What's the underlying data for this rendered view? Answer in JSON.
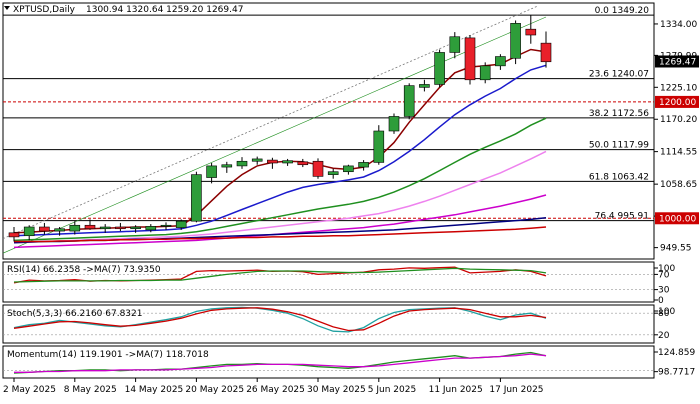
{
  "chart_data": [
    {
      "type": "candlestick",
      "title": "XPTUSD,Daily",
      "ohlc_text": "1300.94 1320.64 1259.20 1269.47",
      "last_price": "1269.47",
      "ylim": [
        930,
        1370
      ],
      "x_ticks": [
        {
          "i": 0,
          "label": "2 May 2025"
        },
        {
          "i": 4,
          "label": "8 May 2025"
        },
        {
          "i": 8,
          "label": "14 May 2025"
        },
        {
          "i": 12,
          "label": "20 May 2025"
        },
        {
          "i": 16,
          "label": "26 May 2025"
        },
        {
          "i": 20,
          "label": "30 May 2025"
        },
        {
          "i": 24,
          "label": "5 Jun 2025"
        },
        {
          "i": 28,
          "label": "11 Jun 2025"
        },
        {
          "i": 32,
          "label": "17 Jun 2025"
        }
      ],
      "y_ticks": [
        "1334.00",
        "1279.99",
        "1225.10",
        "1170.20",
        "1114.55",
        "1058.65",
        "1003.75",
        "949.55"
      ],
      "fib_levels": [
        {
          "label": "0.0 1349.20",
          "value": 1349.2
        },
        {
          "label": "23.6 1240.07",
          "value": 1240.07
        },
        {
          "label": "38.2 1172.56",
          "value": 1172.56
        },
        {
          "label": "50.0 1117.99",
          "value": 1117.99
        },
        {
          "label": "61.8 1063.42",
          "value": 1063.42
        },
        {
          "label": "76.4 995.91",
          "value": 995.91
        }
      ],
      "red_levels": [
        {
          "label": "1200.00",
          "value": 1200
        },
        {
          "label": "1000.00",
          "value": 1000
        }
      ],
      "candles": [
        {
          "o": 975,
          "h": 985,
          "l": 960,
          "c": 968
        },
        {
          "o": 970,
          "h": 988,
          "l": 962,
          "c": 985
        },
        {
          "o": 985,
          "h": 992,
          "l": 972,
          "c": 978
        },
        {
          "o": 978,
          "h": 985,
          "l": 970,
          "c": 982
        },
        {
          "o": 978,
          "h": 995,
          "l": 972,
          "c": 988
        },
        {
          "o": 988,
          "h": 998,
          "l": 980,
          "c": 982
        },
        {
          "o": 982,
          "h": 990,
          "l": 975,
          "c": 985
        },
        {
          "o": 985,
          "h": 992,
          "l": 978,
          "c": 982
        },
        {
          "o": 982,
          "h": 988,
          "l": 975,
          "c": 985
        },
        {
          "o": 980,
          "h": 990,
          "l": 976,
          "c": 986
        },
        {
          "o": 986,
          "h": 993,
          "l": 980,
          "c": 988
        },
        {
          "o": 984,
          "h": 998,
          "l": 980,
          "c": 995
        },
        {
          "o": 995,
          "h": 1080,
          "l": 993,
          "c": 1075
        },
        {
          "o": 1070,
          "h": 1095,
          "l": 1060,
          "c": 1090
        },
        {
          "o": 1088,
          "h": 1097,
          "l": 1078,
          "c": 1092
        },
        {
          "o": 1090,
          "h": 1105,
          "l": 1085,
          "c": 1098
        },
        {
          "o": 1098,
          "h": 1106,
          "l": 1092,
          "c": 1102
        },
        {
          "o": 1100,
          "h": 1104,
          "l": 1085,
          "c": 1095
        },
        {
          "o": 1095,
          "h": 1102,
          "l": 1090,
          "c": 1099
        },
        {
          "o": 1097,
          "h": 1102,
          "l": 1088,
          "c": 1092
        },
        {
          "o": 1098,
          "h": 1103,
          "l": 1068,
          "c": 1072
        },
        {
          "o": 1075,
          "h": 1085,
          "l": 1068,
          "c": 1080
        },
        {
          "o": 1080,
          "h": 1092,
          "l": 1075,
          "c": 1090
        },
        {
          "o": 1088,
          "h": 1100,
          "l": 1082,
          "c": 1096
        },
        {
          "o": 1096,
          "h": 1160,
          "l": 1092,
          "c": 1150
        },
        {
          "o": 1150,
          "h": 1180,
          "l": 1145,
          "c": 1175
        },
        {
          "o": 1175,
          "h": 1232,
          "l": 1170,
          "c": 1228
        },
        {
          "o": 1225,
          "h": 1238,
          "l": 1218,
          "c": 1230
        },
        {
          "o": 1230,
          "h": 1290,
          "l": 1225,
          "c": 1285
        },
        {
          "o": 1285,
          "h": 1320,
          "l": 1275,
          "c": 1312
        },
        {
          "o": 1310,
          "h": 1315,
          "l": 1230,
          "c": 1238
        },
        {
          "o": 1238,
          "h": 1268,
          "l": 1232,
          "c": 1262
        },
        {
          "o": 1262,
          "h": 1282,
          "l": 1255,
          "c": 1278
        },
        {
          "o": 1275,
          "h": 1340,
          "l": 1265,
          "c": 1335
        },
        {
          "o": 1325,
          "h": 1349,
          "l": 1300,
          "c": 1315
        },
        {
          "o": 1301,
          "h": 1321,
          "l": 1259,
          "c": 1269
        }
      ],
      "moving_averages": [
        {
          "color": "#8b0000",
          "values": [
            975,
            976,
            978,
            979,
            981,
            982,
            983,
            984,
            985,
            985,
            986,
            987,
            1005,
            1030,
            1055,
            1075,
            1090,
            1096,
            1098,
            1097,
            1092,
            1086,
            1084,
            1088,
            1105,
            1130,
            1165,
            1195,
            1225,
            1250,
            1260,
            1262,
            1265,
            1278,
            1290,
            1286
          ]
        },
        {
          "color": "#1a1acc",
          "values": [
            970,
            971,
            972,
            973,
            974,
            975,
            976,
            977,
            978,
            979,
            980,
            982,
            988,
            995,
            1005,
            1015,
            1025,
            1035,
            1045,
            1053,
            1058,
            1062,
            1066,
            1071,
            1082,
            1097,
            1115,
            1135,
            1157,
            1178,
            1195,
            1210,
            1223,
            1240,
            1255,
            1263
          ]
        },
        {
          "color": "#1f8f1f",
          "values": [
            962,
            963,
            964,
            965,
            966,
            967,
            968,
            969,
            970,
            971,
            972,
            974,
            977,
            981,
            986,
            991,
            996,
            1001,
            1006,
            1011,
            1016,
            1020,
            1024,
            1029,
            1036,
            1045,
            1056,
            1068,
            1082,
            1096,
            1110,
            1122,
            1133,
            1145,
            1160,
            1172
          ]
        },
        {
          "color": "#ee82ee",
          "values": [
            958,
            959,
            960,
            961,
            962,
            963,
            964,
            965,
            966,
            967,
            968,
            969,
            971,
            973,
            976,
            979,
            982,
            985,
            988,
            991,
            994,
            997,
            1000,
            1004,
            1008,
            1014,
            1021,
            1029,
            1038,
            1048,
            1058,
            1068,
            1078,
            1090,
            1102,
            1115
          ]
        },
        {
          "color": "#cc00cc",
          "values": [
            950,
            951,
            952,
            953,
            954,
            955,
            956,
            957,
            958,
            959,
            960,
            961,
            962,
            964,
            966,
            968,
            970,
            972,
            974,
            976,
            978,
            980,
            982,
            984,
            987,
            990,
            994,
            998,
            1002,
            1006,
            1011,
            1016,
            1021,
            1027,
            1033,
            1040
          ]
        },
        {
          "color": "#000080",
          "values": [
            958,
            959,
            960,
            960,
            961,
            962,
            962,
            963,
            964,
            964,
            965,
            966,
            967,
            968,
            969,
            970,
            971,
            972,
            973,
            974,
            975,
            976,
            977,
            978,
            979,
            980,
            982,
            984,
            986,
            988,
            990,
            992,
            994,
            996,
            998,
            1001
          ]
        },
        {
          "color": "#cc0000",
          "values": [
            960,
            960,
            960,
            961,
            961,
            962,
            962,
            963,
            963,
            964,
            964,
            965,
            965,
            966,
            966,
            967,
            967,
            968,
            968,
            969,
            969,
            970,
            970,
            971,
            972,
            973,
            974,
            975,
            976,
            977,
            978,
            979,
            980,
            981,
            983,
            985
          ]
        }
      ]
    },
    {
      "type": "line",
      "title": "RSI(14) 66.2358  ->MA(7) 73.9350",
      "y_ticks": [
        "100",
        "70",
        "30",
        "0"
      ],
      "ylim": [
        0,
        100
      ],
      "series": [
        {
          "color": "#cc0000",
          "values": [
            48,
            55,
            53,
            54,
            56,
            52,
            54,
            53,
            54,
            55,
            56,
            58,
            78,
            80,
            79,
            80,
            81,
            78,
            79,
            77,
            70,
            72,
            74,
            76,
            82,
            84,
            87,
            86,
            88,
            89,
            74,
            76,
            78,
            82,
            78,
            66
          ]
        },
        {
          "color": "#1f8f1f",
          "values": [
            50,
            51,
            52,
            53,
            53,
            53,
            53,
            54,
            54,
            54,
            55,
            55,
            60,
            65,
            70,
            74,
            78,
            79,
            79,
            79,
            77,
            76,
            75,
            75,
            76,
            78,
            80,
            82,
            84,
            86,
            84,
            83,
            82,
            81,
            80,
            74
          ]
        }
      ]
    },
    {
      "type": "line",
      "title": "Stoch(5,3,3) 66.2160 67.8321",
      "y_ticks": [
        "100",
        "80",
        "20"
      ],
      "ylim": [
        0,
        100
      ],
      "series": [
        {
          "color": "#20a0a0",
          "values": [
            40,
            48,
            52,
            60,
            55,
            50,
            45,
            42,
            48,
            55,
            62,
            70,
            85,
            92,
            95,
            96,
            94,
            88,
            80,
            65,
            45,
            30,
            28,
            40,
            65,
            82,
            90,
            92,
            94,
            95,
            85,
            72,
            62,
            75,
            80,
            66
          ]
        },
        {
          "color": "#cc0000",
          "values": [
            38,
            44,
            50,
            56,
            57,
            53,
            48,
            44,
            46,
            52,
            58,
            66,
            78,
            88,
            92,
            94,
            95,
            91,
            84,
            74,
            58,
            42,
            32,
            34,
            52,
            72,
            86,
            90,
            92,
            94,
            90,
            80,
            70,
            70,
            74,
            68
          ]
        }
      ]
    },
    {
      "type": "line",
      "title": "Momentum(14) 119.1901  ->MA(7) 118.7018",
      "y_ticks": [
        "124.859",
        "98.7717"
      ],
      "ylim": [
        92,
        130
      ],
      "series": [
        {
          "color": "#1f8f1f",
          "values": [
            97,
            98,
            99,
            100,
            100,
            101,
            101,
            100,
            101,
            101,
            102,
            102,
            104,
            106,
            108,
            108,
            109,
            108,
            108,
            107,
            105,
            104,
            103,
            105,
            108,
            111,
            113,
            115,
            117,
            119,
            116,
            117,
            118,
            121,
            123,
            119
          ]
        },
        {
          "color": "#cc00cc",
          "values": [
            98,
            98,
            99,
            99,
            100,
            100,
            100,
            101,
            101,
            101,
            101,
            102,
            103,
            104,
            106,
            107,
            108,
            108,
            108,
            108,
            107,
            106,
            105,
            105,
            106,
            108,
            110,
            112,
            114,
            116,
            116,
            117,
            118,
            119,
            121,
            119
          ]
        }
      ]
    }
  ]
}
